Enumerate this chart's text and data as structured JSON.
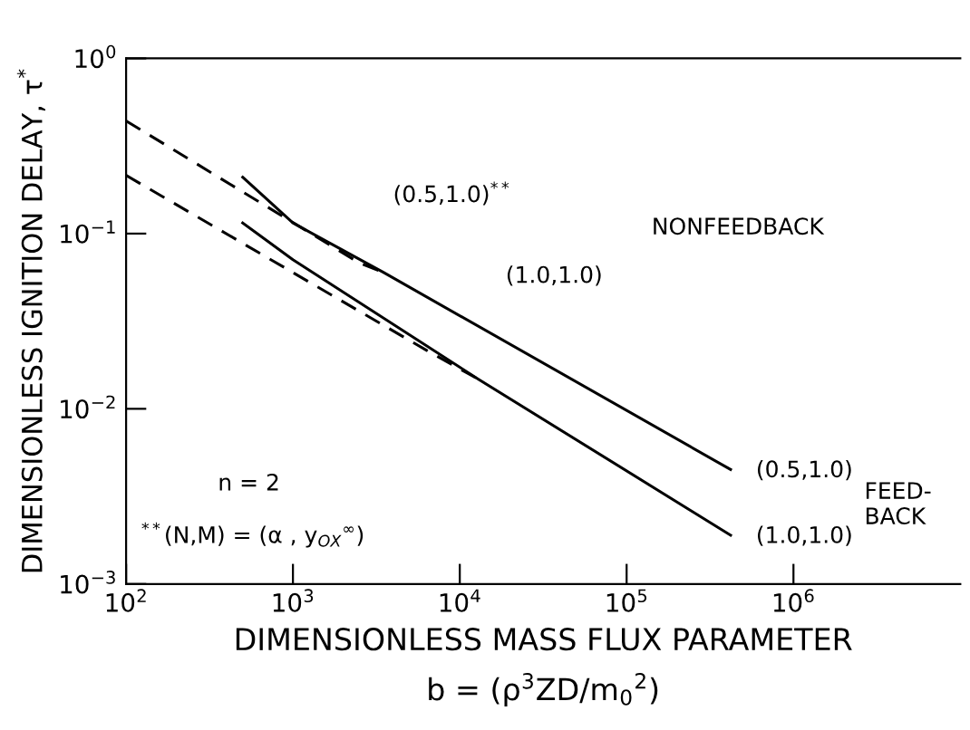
{
  "chart_data": {
    "type": "line",
    "log": "xy",
    "xlabel": "DIMENSIONLESS MASS FLUX PARAMETER\nb = (ρ$^{3}$ZD/m$_{0}$$^{2}$)",
    "ylabel": "DIMENSIONLESS IGNITION DELAY, τ$^{*}$",
    "xlim": [
      100,
      10000000
    ],
    "ylim": [
      0.001,
      1
    ],
    "xticks": [
      {
        "value": 100,
        "label": "10$^{2}$"
      },
      {
        "value": 1000,
        "label": "10$^{3}$"
      },
      {
        "value": 10000,
        "label": "10$^{4}$"
      },
      {
        "value": 100000,
        "label": "10$^{5}$"
      },
      {
        "value": 1000000,
        "label": "10$^{6}$"
      }
    ],
    "yticks": [
      {
        "value": 0.001,
        "label": "10$^{−3}$"
      },
      {
        "value": 0.01,
        "label": "10$^{−2}$"
      },
      {
        "value": 0.1,
        "label": "10$^{−1}$"
      },
      {
        "value": 1,
        "label": "10$^{0}$"
      }
    ],
    "grid": false,
    "marker": "none",
    "series": [
      {
        "color": "#000000",
        "line_style": "dashed",
        "x": [
          100,
          2500,
          3500
        ],
        "values": [
          0.44,
          0.068,
          0.06
        ]
      },
      {
        "color": "#000000",
        "line_style": "dashed",
        "x": [
          100,
          6300,
          13000
        ],
        "values": [
          0.215,
          0.0216,
          0.0147
        ]
      },
      {
        "color": "#000000",
        "line_style": "solid",
        "x": [
          500,
          1000,
          3500,
          420000
        ],
        "values": [
          0.21,
          0.115,
          0.06,
          0.0045
        ]
      },
      {
        "color": "#000000",
        "line_style": "solid",
        "x": [
          500,
          1000,
          13000,
          420000
        ],
        "values": [
          0.115,
          0.071,
          0.0147,
          0.0019
        ]
      }
    ],
    "annotations": [
      "(0.5,1.0)$^{**}$",
      "(1.0,1.0)",
      "NONFEEDBACK",
      "(0.5,1.0)",
      "(1.0,1.0)",
      "FEED-\nBACK",
      "n = 2",
      "$^{**}$(N,M) = (α , y$_{OX}$$^{∞}$)"
    ]
  }
}
